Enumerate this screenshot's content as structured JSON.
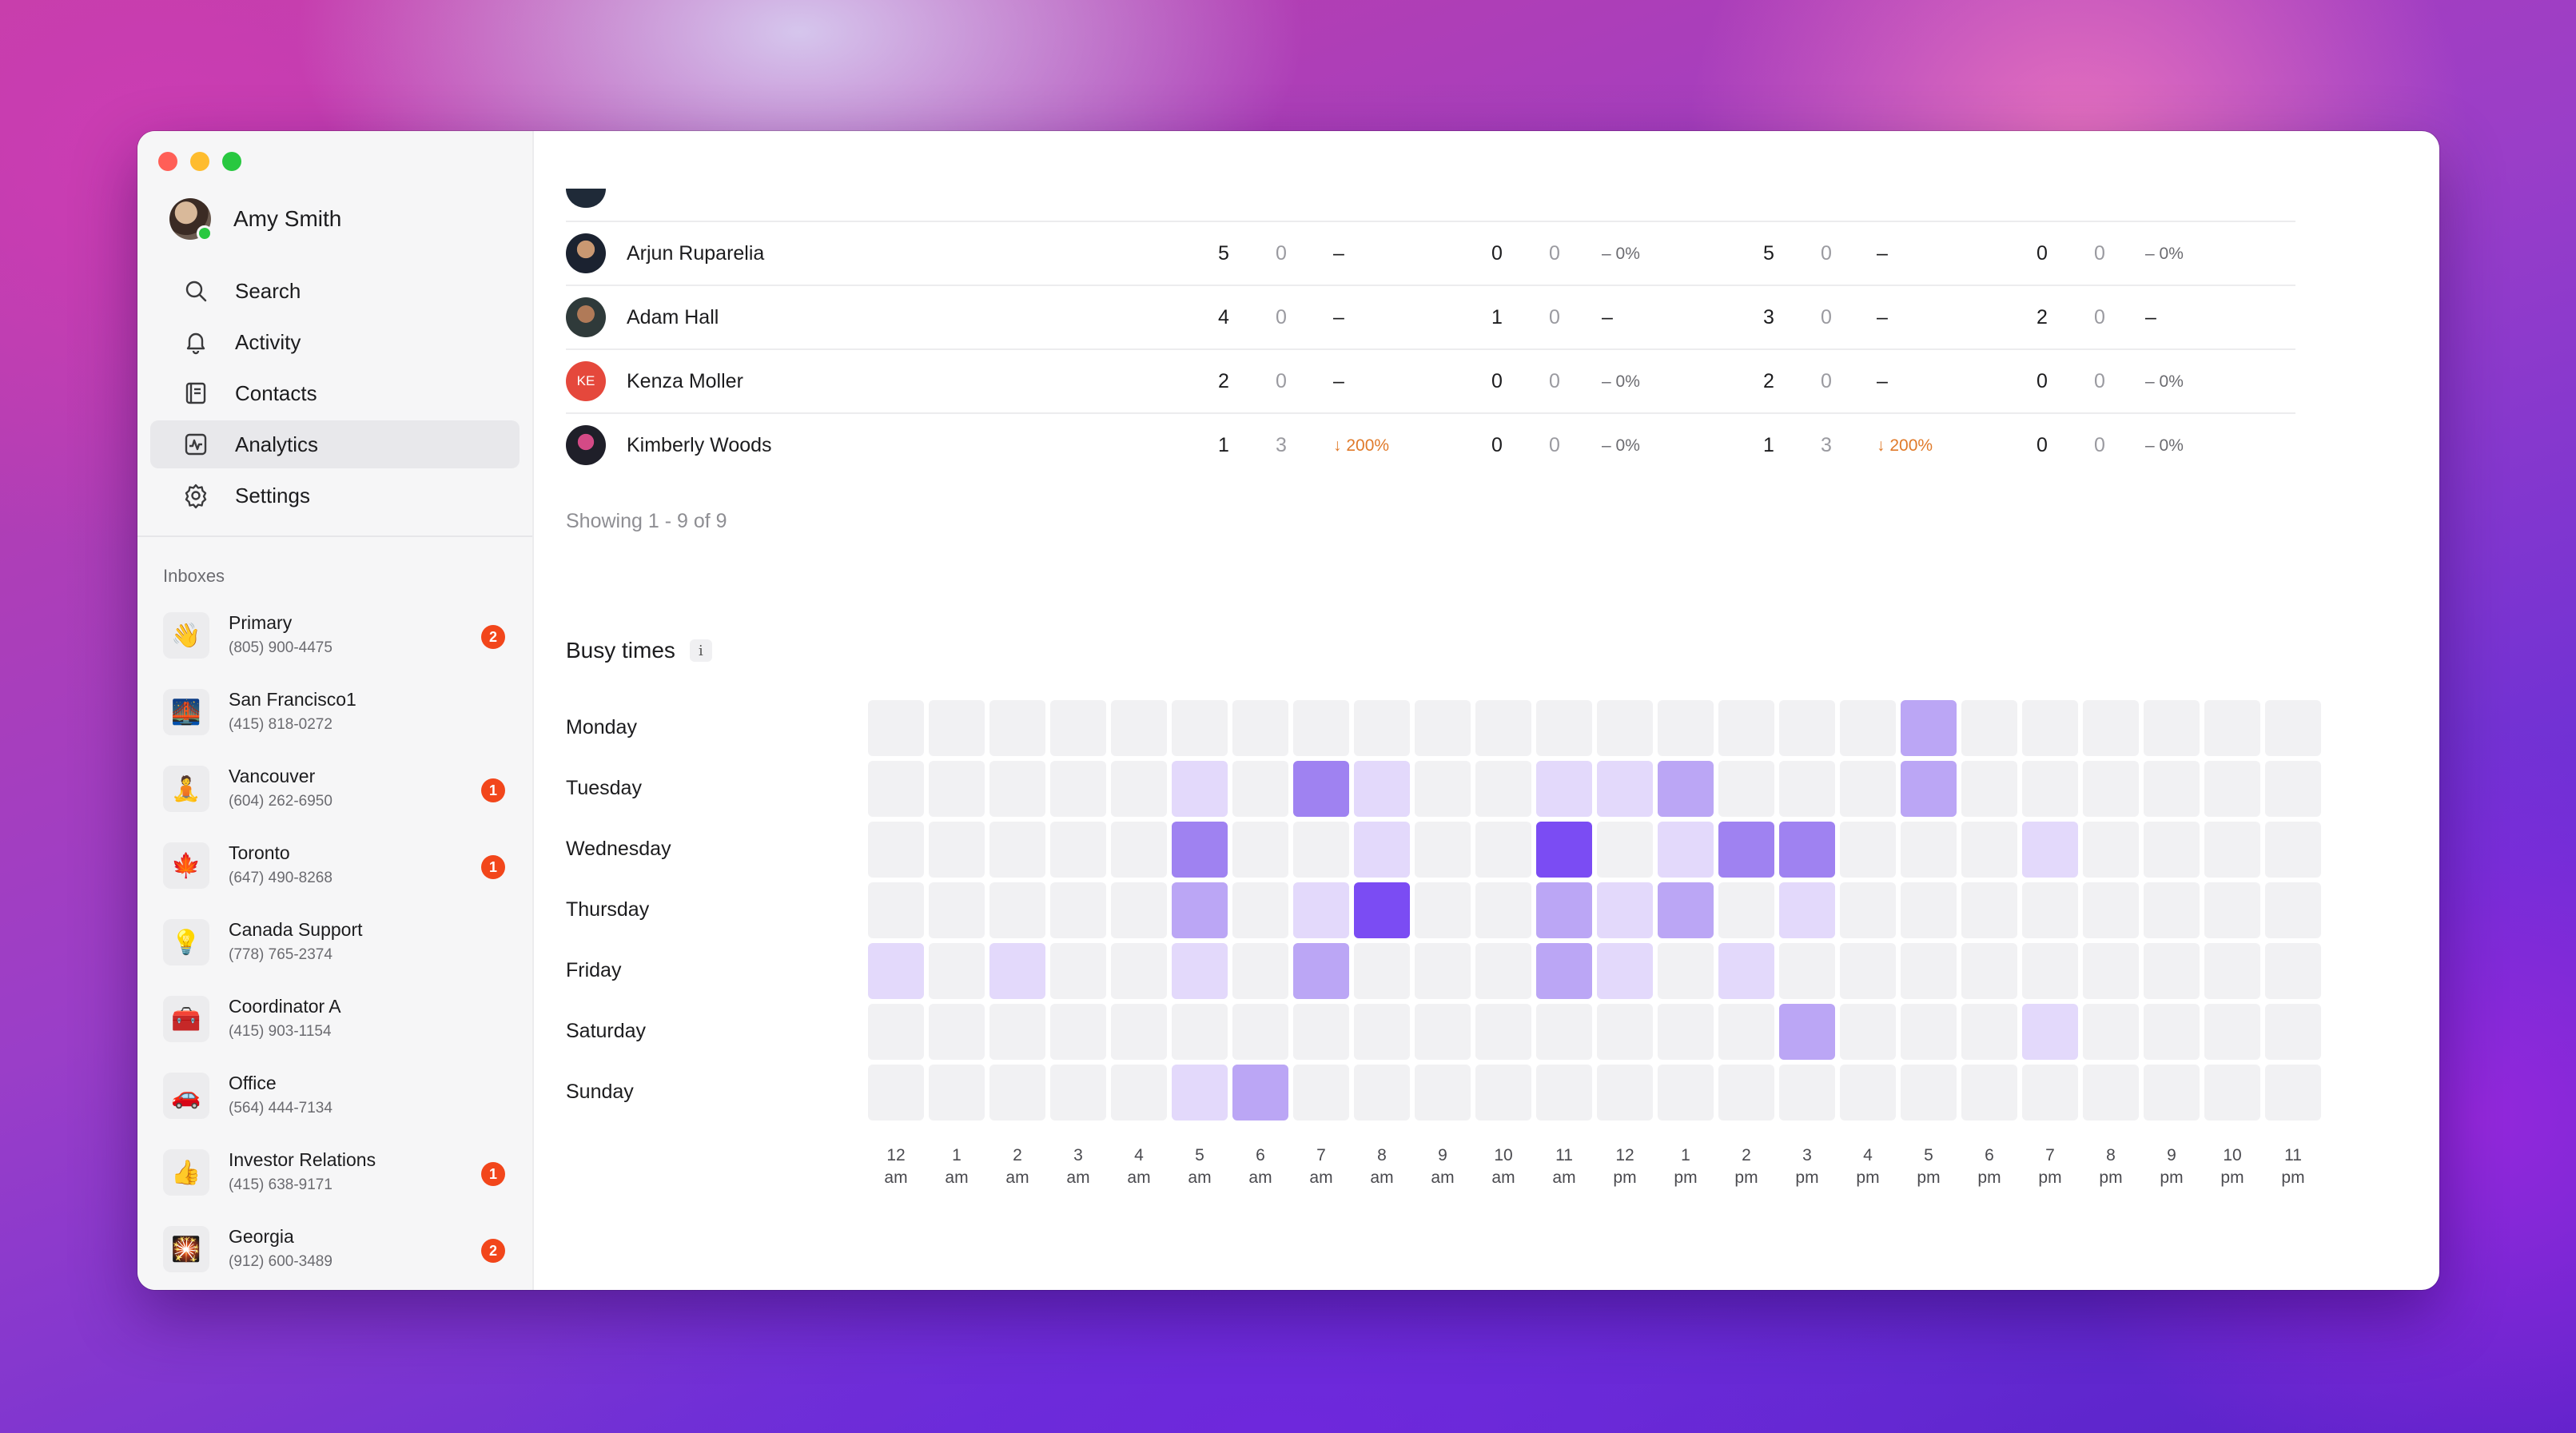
{
  "profile": {
    "name": "Amy Smith"
  },
  "nav": [
    {
      "label": "Search",
      "icon": "search-icon"
    },
    {
      "label": "Activity",
      "icon": "bell-icon"
    },
    {
      "label": "Contacts",
      "icon": "contacts-icon"
    },
    {
      "label": "Analytics",
      "icon": "analytics-icon",
      "active": true
    },
    {
      "label": "Settings",
      "icon": "gear-icon"
    }
  ],
  "inboxes": {
    "heading": "Inboxes",
    "items": [
      {
        "name": "Primary",
        "phone": "(805) 900-4475",
        "emoji": "👋",
        "badge": "2"
      },
      {
        "name": "San Francisco1",
        "phone": "(415) 818-0272",
        "emoji": "🌉",
        "badge": ""
      },
      {
        "name": "Vancouver",
        "phone": "(604) 262-6950",
        "emoji": "🧘",
        "badge": "1"
      },
      {
        "name": "Toronto",
        "phone": "(647) 490-8268",
        "emoji": "🍁",
        "badge": "1"
      },
      {
        "name": "Canada Support",
        "phone": "(778) 765-2374",
        "emoji": "💡",
        "badge": ""
      },
      {
        "name": "Coordinator A",
        "phone": "(415) 903-1154",
        "emoji": "🧰",
        "badge": ""
      },
      {
        "name": "Office",
        "phone": "(564) 444-7134",
        "emoji": "🚗",
        "badge": ""
      },
      {
        "name": "Investor Relations",
        "phone": "(415) 638-9171",
        "emoji": "👍",
        "badge": "1"
      },
      {
        "name": "Georgia",
        "phone": "(912) 600-3489",
        "emoji": "🎇",
        "badge": "2"
      }
    ]
  },
  "table": {
    "rows": [
      {
        "name": "Arjun Ruparelia",
        "avatar": "",
        "c1": "5",
        "c2": "0",
        "c3": "–",
        "c4": "0",
        "c5": "0",
        "c6": "– 0%",
        "c7": "5",
        "c8": "0",
        "c9": "–",
        "c10": "0",
        "c11": "0",
        "c12": "– 0%"
      },
      {
        "name": "Adam Hall",
        "avatar": "",
        "c1": "4",
        "c2": "0",
        "c3": "–",
        "c4": "1",
        "c5": "0",
        "c6": "–",
        "c7": "3",
        "c8": "0",
        "c9": "–",
        "c10": "2",
        "c11": "0",
        "c12": "–"
      },
      {
        "name": "Kenza Moller",
        "avatar": "KE",
        "c1": "2",
        "c2": "0",
        "c3": "–",
        "c4": "0",
        "c5": "0",
        "c6": "– 0%",
        "c7": "2",
        "c8": "0",
        "c9": "–",
        "c10": "0",
        "c11": "0",
        "c12": "– 0%"
      },
      {
        "name": "Kimberly Woods",
        "avatar": "",
        "c1": "1",
        "c2": "3",
        "c3": "↓ 200%",
        "c4": "0",
        "c5": "0",
        "c6": "– 0%",
        "c7": "1",
        "c8": "3",
        "c9": "↓ 200%",
        "c10": "0",
        "c11": "0",
        "c12": "– 0%"
      }
    ],
    "showing": "Showing 1 - 9 of 9"
  },
  "busy": {
    "title": "Busy times",
    "info": "i",
    "days": [
      "Monday",
      "Tuesday",
      "Wednesday",
      "Thursday",
      "Friday",
      "Saturday",
      "Sunday"
    ],
    "hours": [
      [
        "12",
        "am"
      ],
      [
        "1",
        "am"
      ],
      [
        "2",
        "am"
      ],
      [
        "3",
        "am"
      ],
      [
        "4",
        "am"
      ],
      [
        "5",
        "am"
      ],
      [
        "6",
        "am"
      ],
      [
        "7",
        "am"
      ],
      [
        "8",
        "am"
      ],
      [
        "9",
        "am"
      ],
      [
        "10",
        "am"
      ],
      [
        "11",
        "am"
      ],
      [
        "12",
        "pm"
      ],
      [
        "1",
        "pm"
      ],
      [
        "2",
        "pm"
      ],
      [
        "3",
        "pm"
      ],
      [
        "4",
        "pm"
      ],
      [
        "5",
        "pm"
      ],
      [
        "6",
        "pm"
      ],
      [
        "7",
        "pm"
      ],
      [
        "8",
        "pm"
      ],
      [
        "9",
        "pm"
      ],
      [
        "10",
        "pm"
      ],
      [
        "11",
        "pm"
      ]
    ],
    "levels": [
      [
        0,
        0,
        0,
        0,
        0,
        0,
        0,
        0,
        0,
        0,
        0,
        0,
        0,
        0,
        0,
        0,
        0,
        2,
        0,
        0,
        0,
        0,
        0,
        0
      ],
      [
        0,
        0,
        0,
        0,
        0,
        1,
        0,
        3,
        1,
        0,
        0,
        1,
        1,
        2,
        0,
        0,
        0,
        2,
        0,
        0,
        0,
        0,
        0,
        0
      ],
      [
        0,
        0,
        0,
        0,
        0,
        3,
        0,
        0,
        1,
        0,
        0,
        4,
        0,
        1,
        3,
        3,
        0,
        0,
        0,
        1,
        0,
        0,
        0,
        0
      ],
      [
        0,
        0,
        0,
        0,
        0,
        2,
        0,
        1,
        4,
        0,
        0,
        2,
        1,
        2,
        0,
        1,
        0,
        0,
        0,
        0,
        0,
        0,
        0,
        0
      ],
      [
        1,
        0,
        1,
        0,
        0,
        1,
        0,
        2,
        0,
        0,
        0,
        2,
        1,
        0,
        1,
        0,
        0,
        0,
        0,
        0,
        0,
        0,
        0,
        0
      ],
      [
        0,
        0,
        0,
        0,
        0,
        0,
        0,
        0,
        0,
        0,
        0,
        0,
        0,
        0,
        0,
        2,
        0,
        0,
        0,
        1,
        0,
        0,
        0,
        0
      ],
      [
        0,
        0,
        0,
        0,
        0,
        1,
        2,
        0,
        0,
        0,
        0,
        0,
        0,
        0,
        0,
        0,
        0,
        0,
        0,
        0,
        0,
        0,
        0,
        0
      ]
    ],
    "palette": [
      "#f1f1f3",
      "#e3d9fb",
      "#bba6f5",
      "#9f82f1",
      "#7b4cf3"
    ]
  }
}
